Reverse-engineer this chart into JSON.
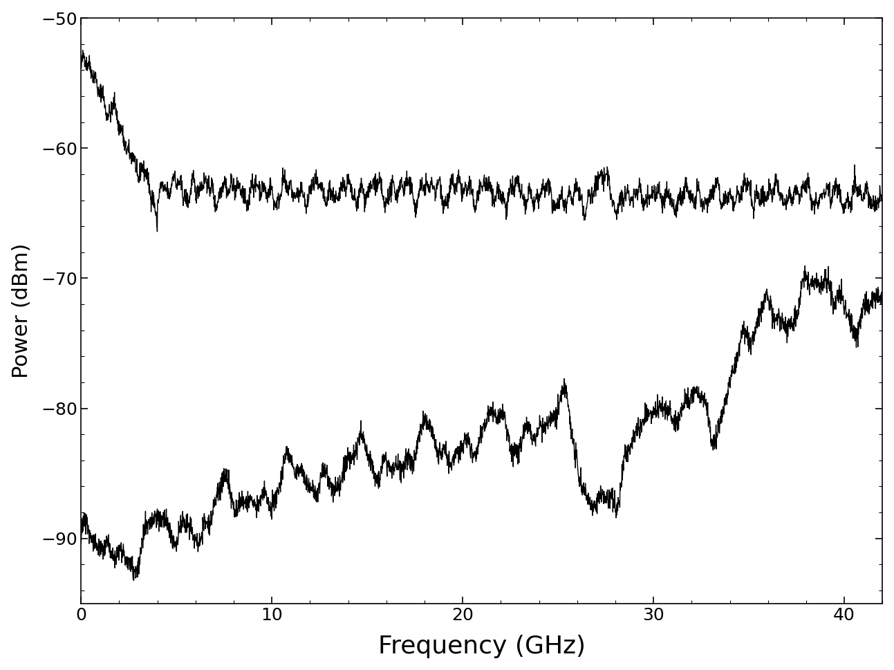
{
  "title": "",
  "xlabel": "Frequency (GHz)",
  "ylabel": "Power (dBm)",
  "xlim": [
    0,
    42
  ],
  "ylim": [
    -95,
    -50
  ],
  "xticks": [
    0,
    10,
    20,
    30,
    40
  ],
  "yticks": [
    -90,
    -80,
    -70,
    -60,
    -50
  ],
  "line_color": "#000000",
  "background_color": "#ffffff",
  "xlabel_fontsize": 26,
  "ylabel_fontsize": 22,
  "tick_fontsize": 18,
  "linewidth_upper": 1.0,
  "linewidth_lower": 1.0,
  "num_points": 3000,
  "seed": 42
}
